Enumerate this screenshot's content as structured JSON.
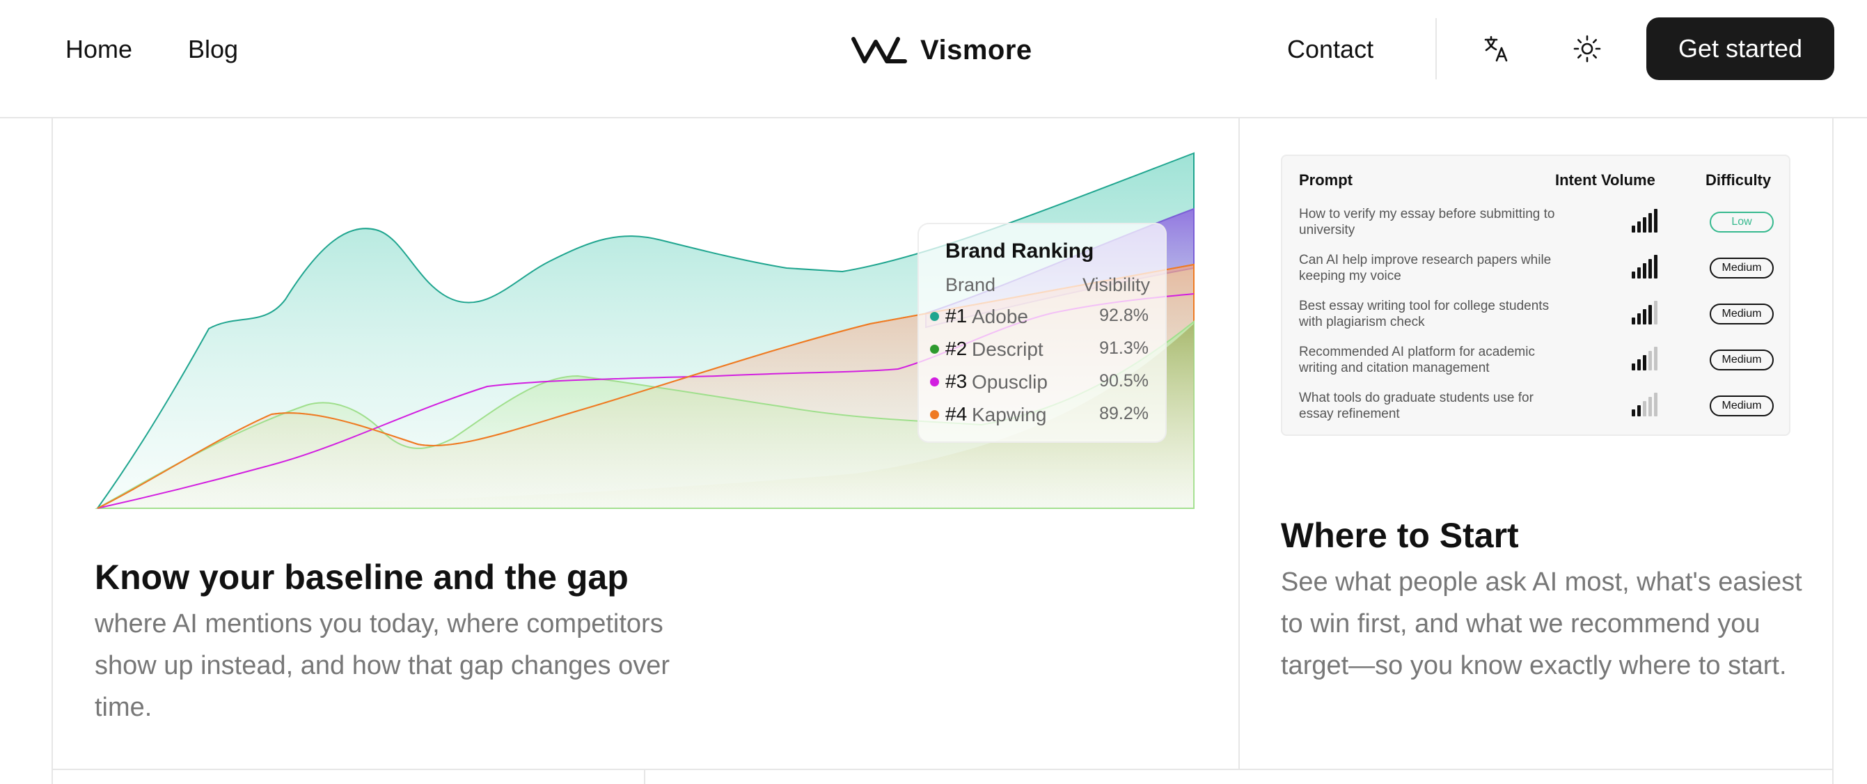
{
  "header": {
    "nav": [
      {
        "label": "Home"
      },
      {
        "label": "Blog"
      }
    ],
    "logo_text": "Vismore",
    "contact": "Contact",
    "translate_icon": "translate-icon",
    "theme_icon": "sun-icon",
    "cta": "Get started"
  },
  "baseline": {
    "title": "Know your baseline and the gap",
    "description": "where AI mentions you today, where competitors show up instead, and how that gap changes over time."
  },
  "ranking": {
    "title": "Brand Ranking",
    "col_brand": "Brand",
    "col_visibility": "Visibility",
    "rows": [
      {
        "rank": "#1",
        "brand": "Adobe",
        "visibility": "92.8%",
        "color": "#1fa58f"
      },
      {
        "rank": "#2",
        "brand": "Descript",
        "visibility": "91.3%",
        "color": "#2e9a2e"
      },
      {
        "rank": "#3",
        "brand": "Opusclip",
        "visibility": "90.5%",
        "color": "#d21ee0"
      },
      {
        "rank": "#4",
        "brand": "Kapwing",
        "visibility": "89.2%",
        "color": "#ef7a22"
      }
    ]
  },
  "prompts": {
    "col_prompt": "Prompt",
    "col_intent": "Intent Volume",
    "col_difficulty": "Difficulty",
    "rows": [
      {
        "prompt": "How to verify my essay before submitting to university",
        "intent_level": 5,
        "difficulty": "Low"
      },
      {
        "prompt": "Can AI help improve research papers while keeping my voice",
        "intent_level": 5,
        "difficulty": "Medium"
      },
      {
        "prompt": "Best essay writing tool for college students with plagiarism check",
        "intent_level": 4,
        "difficulty": "Medium"
      },
      {
        "prompt": "Recommended AI platform for academic writing and citation management",
        "intent_level": 3,
        "difficulty": "Medium"
      },
      {
        "prompt": "What tools do graduate students use for essay refinement",
        "intent_level": 2,
        "difficulty": "Medium"
      }
    ]
  },
  "start": {
    "title": "Where to Start",
    "description": "See what people ask AI most, what's easiest to win first, and what we recommend you target—so you know exactly where to start."
  },
  "colors": {
    "accent": "#1a1a1a",
    "low": "#36b98e",
    "teal": "#1fa58f",
    "green": "#2e9a2e",
    "magenta": "#d21ee0",
    "orange": "#ef7a22",
    "purple": "#7b5fd6"
  },
  "chart_data": {
    "type": "area",
    "title": "",
    "xlabel": "",
    "ylabel": "",
    "x": [
      0,
      1,
      2,
      3,
      4,
      5,
      6,
      7,
      8,
      9,
      10,
      11,
      12
    ],
    "series": [
      {
        "name": "Adobe",
        "values": [
          0,
          45,
          55,
          80,
          58,
          68,
          78,
          74,
          70,
          68,
          72,
          85,
          100
        ]
      },
      {
        "name": "Descript",
        "values": [
          0,
          20,
          33,
          25,
          20,
          42,
          40,
          36,
          32,
          28,
          38,
          50,
          55
        ]
      },
      {
        "name": "Opusclip",
        "values": [
          0,
          8,
          14,
          24,
          35,
          36,
          37,
          38,
          40,
          46,
          58,
          72,
          85
        ]
      },
      {
        "name": "Kapwing",
        "values": [
          0,
          18,
          28,
          22,
          18,
          26,
          34,
          42,
          50,
          54,
          60,
          66,
          70
        ]
      }
    ],
    "ylim": [
      0,
      100
    ]
  }
}
